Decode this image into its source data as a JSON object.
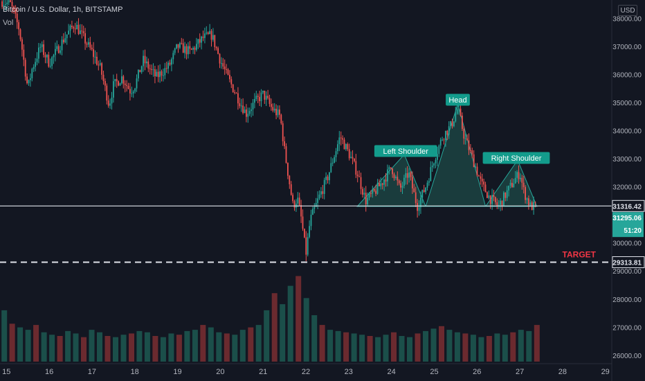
{
  "header": {
    "symbol": "Bitcoin / U.S. Dollar, 1h, BITSTAMP",
    "volume_label": "Vol"
  },
  "currency_button": "USD",
  "chart_data": {
    "type": "candlestick",
    "y_ticks": [
      38000,
      37000,
      36000,
      35000,
      34000,
      33000,
      32000,
      31000,
      30000,
      29000,
      28000,
      27000,
      26000
    ],
    "y_range": [
      25700,
      38650
    ],
    "x_ticks": [
      {
        "day": 15,
        "label": "15"
      },
      {
        "day": 16,
        "label": "16"
      },
      {
        "day": 17,
        "label": "17"
      },
      {
        "day": 18,
        "label": "18"
      },
      {
        "day": 19,
        "label": "19"
      },
      {
        "day": 20,
        "label": "20"
      },
      {
        "day": 21,
        "label": "21"
      },
      {
        "day": 22,
        "label": "22"
      },
      {
        "day": 23,
        "label": "23"
      },
      {
        "day": 24,
        "label": "24"
      },
      {
        "day": 25,
        "label": "25"
      },
      {
        "day": 26,
        "label": "26"
      },
      {
        "day": 27,
        "label": "27"
      },
      {
        "day": 28,
        "label": "28"
      },
      {
        "day": 29,
        "label": "29"
      }
    ],
    "x_range": [
      14.85,
      29.15
    ],
    "price_path": [
      [
        14.9,
        38600
      ],
      [
        15.1,
        38500
      ],
      [
        15.3,
        37600
      ],
      [
        15.5,
        35500
      ],
      [
        15.6,
        36200
      ],
      [
        15.8,
        37000
      ],
      [
        16.0,
        36400
      ],
      [
        16.2,
        36900
      ],
      [
        16.4,
        37400
      ],
      [
        16.6,
        37800
      ],
      [
        16.8,
        37300
      ],
      [
        17.0,
        36800
      ],
      [
        17.2,
        36200
      ],
      [
        17.4,
        34900
      ],
      [
        17.5,
        35600
      ],
      [
        17.7,
        35900
      ],
      [
        17.9,
        35400
      ],
      [
        18.0,
        35600
      ],
      [
        18.2,
        36500
      ],
      [
        18.5,
        35900
      ],
      [
        18.8,
        36300
      ],
      [
        19.0,
        37000
      ],
      [
        19.3,
        36800
      ],
      [
        19.6,
        37300
      ],
      [
        19.8,
        37400
      ],
      [
        20.0,
        36500
      ],
      [
        20.2,
        35800
      ],
      [
        20.4,
        35200
      ],
      [
        20.6,
        34600
      ],
      [
        20.8,
        35000
      ],
      [
        21.0,
        35300
      ],
      [
        21.2,
        34800
      ],
      [
        21.4,
        34500
      ],
      [
        21.5,
        33300
      ],
      [
        21.6,
        32300
      ],
      [
        21.7,
        31300
      ],
      [
        21.8,
        31600
      ],
      [
        21.9,
        30800
      ],
      [
        22.0,
        29600
      ],
      [
        22.1,
        30800
      ],
      [
        22.3,
        31600
      ],
      [
        22.5,
        32300
      ],
      [
        22.7,
        33300
      ],
      [
        22.8,
        33800
      ],
      [
        23.0,
        33200
      ],
      [
        23.2,
        32500
      ],
      [
        23.4,
        31500
      ],
      [
        23.6,
        31800
      ],
      [
        23.8,
        32200
      ],
      [
        24.0,
        32700
      ],
      [
        24.2,
        31900
      ],
      [
        24.4,
        32500
      ],
      [
        24.6,
        31300
      ],
      [
        24.8,
        32000
      ],
      [
        25.0,
        33000
      ],
      [
        25.2,
        33800
      ],
      [
        25.4,
        34200
      ],
      [
        25.55,
        34800
      ],
      [
        25.7,
        33800
      ],
      [
        25.9,
        33000
      ],
      [
        26.1,
        32100
      ],
      [
        26.3,
        31600
      ],
      [
        26.5,
        31300
      ],
      [
        26.7,
        31800
      ],
      [
        26.9,
        32300
      ],
      [
        27.0,
        32500
      ],
      [
        27.1,
        31800
      ],
      [
        27.25,
        31300
      ],
      [
        27.4,
        31300
      ]
    ],
    "volumes": [
      420,
      310,
      280,
      260,
      300,
      240,
      220,
      210,
      250,
      230,
      200,
      260,
      240,
      210,
      200,
      220,
      230,
      250,
      240,
      210,
      200,
      230,
      220,
      250,
      260,
      300,
      280,
      240,
      230,
      220,
      260,
      280,
      300,
      420,
      560,
      470,
      620,
      700,
      520,
      380,
      300,
      260,
      250,
      240,
      230,
      220,
      210,
      200,
      220,
      240,
      210,
      200,
      230,
      250,
      270,
      290,
      260,
      240,
      230,
      220,
      200,
      210,
      230,
      220,
      240,
      260,
      250,
      300
    ],
    "volume_max_value": 720,
    "pattern": {
      "left_shoulder": {
        "label": "Left Shoulder",
        "start": [
          23.2,
          31300
        ],
        "peak": [
          24.3,
          33150
        ],
        "end": [
          24.8,
          31300
        ]
      },
      "head": {
        "label": "Head",
        "start": [
          24.8,
          31300
        ],
        "peak": [
          25.55,
          34950
        ],
        "end": [
          26.2,
          31300
        ]
      },
      "right_shoulder": {
        "label": "Right Shoulder",
        "start": [
          26.2,
          31300
        ],
        "peak": [
          26.95,
          32950
        ],
        "end": [
          27.4,
          31300
        ]
      }
    },
    "neckline": {
      "value": 31316.42,
      "label": "31316.42"
    },
    "target": {
      "value": 29313.81,
      "label": "29313.81",
      "text": "TARGET"
    },
    "last_price": {
      "value": 31295.06,
      "label": "31295.06",
      "countdown": "51:20"
    },
    "colors": {
      "up": "#26a69a",
      "down": "#ef5350",
      "up_volume": "#1b4f4a",
      "down_volume": "#6b2a2f",
      "pattern_fill": "#1e4a47",
      "pattern_stroke": "#26a69a",
      "label_bg": "#139c8c",
      "target_text": "#f23645",
      "background": "#131722",
      "axis_text": "#b2b5be"
    }
  }
}
